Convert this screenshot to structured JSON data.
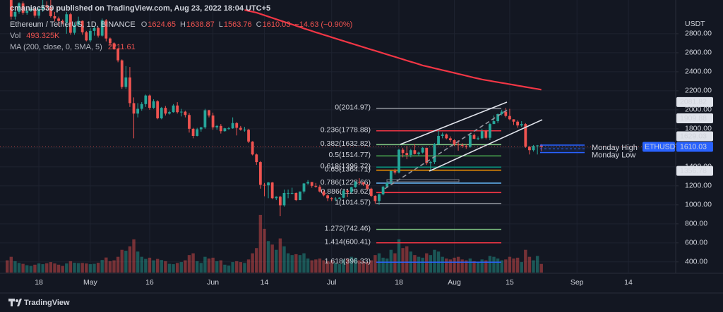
{
  "chart_data": {
    "type": "candlestick",
    "header": "cmaniac539 published on TradingView.com, Aug 23, 2022 18:04 UTC+5",
    "symbol": "Ethereum / TetherUS, 1D, BINANCE",
    "open_label": "O",
    "high_label": "H",
    "low_label": "L",
    "close_label": "C",
    "change": "−14.63 (−0.90%)",
    "volume_name": "Vol",
    "volume_last_label": "493.325K",
    "ma_name": "MA (200, close, 0, SMA, 5)",
    "currency": "USDT",
    "symbol_tag": "ETHUSDT",
    "footer": "TradingView",
    "up_color": "#26a69a",
    "down_color": "#ef5350",
    "ma_color": "#f23645",
    "grid": true,
    "ylim": [
      280,
      3155
    ],
    "yticks": [
      {
        "value": 400,
        "label": "400.00"
      },
      {
        "value": 600,
        "label": "600.00"
      },
      {
        "value": 800,
        "label": "800.00"
      },
      {
        "value": 1000,
        "label": "1000.00"
      },
      {
        "value": 1200,
        "label": "1200.00"
      },
      {
        "value": 1400,
        "label": "1400.00"
      },
      {
        "value": 1600,
        "label": "1600.00"
      },
      {
        "value": 1800,
        "label": "1800.00"
      },
      {
        "value": 2000,
        "label": "2000.00"
      },
      {
        "value": 2200,
        "label": "2200.00"
      },
      {
        "value": 2400,
        "label": "2400.00"
      },
      {
        "value": 2600,
        "label": "2600.00"
      },
      {
        "value": 2800,
        "label": "2800.00"
      }
    ],
    "categories": [
      null,
      null,
      null,
      null,
      null,
      null,
      null,
      null,
      "18",
      null,
      null,
      null,
      null,
      null,
      null,
      null,
      null,
      null,
      null,
      null,
      null,
      "May",
      null,
      null,
      null,
      null,
      null,
      null,
      null,
      null,
      null,
      null,
      null,
      null,
      null,
      null,
      "16",
      null,
      null,
      null,
      null,
      null,
      null,
      null,
      null,
      null,
      null,
      null,
      null,
      null,
      null,
      null,
      "Jun",
      null,
      null,
      null,
      null,
      null,
      null,
      null,
      null,
      null,
      null,
      null,
      null,
      "14",
      null,
      null,
      null,
      null,
      null,
      null,
      null,
      null,
      null,
      null,
      null,
      null,
      null,
      null,
      null,
      null,
      "Jul",
      null,
      null,
      null,
      null,
      null,
      null,
      null,
      null,
      null,
      null,
      null,
      null,
      null,
      null,
      null,
      null,
      "18",
      null,
      null,
      null,
      null,
      null,
      null,
      null,
      null,
      null,
      null,
      null,
      null,
      null,
      "Aug",
      null,
      null,
      null,
      null,
      null,
      null,
      null,
      null,
      null,
      null,
      null,
      null,
      null,
      "15",
      null,
      null,
      null,
      null,
      null,
      null,
      null,
      null,
      null,
      null,
      null,
      null,
      null,
      null,
      null,
      null,
      "Sep",
      null,
      null,
      null,
      null,
      null,
      null,
      null,
      null,
      null,
      null,
      null,
      null,
      "14",
      null,
      null
    ],
    "open": [
      3300,
      3260,
      2980,
      3030,
      3120,
      3020,
      3040,
      3060,
      2990,
      3060,
      3100,
      3080,
      2985,
      2960,
      2935,
      2920,
      3005,
      2810,
      2890,
      2935,
      2815,
      2730,
      2830,
      2860,
      2780,
      2940,
      2750,
      2700,
      2640,
      2520,
      2240,
      2340,
      2070,
      1960,
      2010,
      2060,
      2150,
      2020,
      2090,
      1910,
      2020,
      1960,
      1975,
      2045,
      1975,
      1980,
      1945,
      1800,
      1725,
      1795,
      1815,
      1995,
      1940,
      1815,
      1830,
      1775,
      1805,
      1805,
      1860,
      1810,
      1790,
      1790,
      1665,
      1530,
      1450,
      1210,
      1205,
      1235,
      1070,
      1085,
      995,
      1125,
      1125,
      1125,
      1050,
      1140,
      1225,
      1240,
      1200,
      1190,
      1140,
      1100,
      1070,
      1060,
      1065,
      1075,
      1150,
      1135,
      1185,
      1240,
      1235,
      1215,
      1170,
      1095,
      1040,
      1110,
      1190,
      1230,
      1355,
      1340,
      1580,
      1545,
      1525,
      1575,
      1535,
      1550,
      1600,
      1440,
      1450,
      1640,
      1725,
      1740,
      1700,
      1680,
      1635,
      1630,
      1620,
      1610,
      1735,
      1695,
      1700,
      1775,
      1705,
      1850,
      1880,
      1955,
      1980,
      1935,
      1900,
      1875,
      1835,
      1850,
      1610,
      1575,
      1620,
      1624.65,
      null,
      null,
      null,
      null,
      null,
      null,
      null,
      null,
      null,
      null,
      null,
      null,
      null,
      null,
      null,
      null,
      null,
      null,
      null,
      null,
      null,
      null,
      null,
      null
    ],
    "high": [
      3320,
      3270,
      3050,
      3130,
      3140,
      3060,
      3080,
      3070,
      3070,
      3170,
      3140,
      3190,
      3030,
      2980,
      2950,
      3030,
      3020,
      2920,
      2980,
      2940,
      2830,
      2860,
      2880,
      2870,
      2960,
      2955,
      2760,
      2710,
      2650,
      2530,
      2460,
      2450,
      2130,
      2070,
      2080,
      2160,
      2160,
      2110,
      2100,
      2030,
      2040,
      1990,
      2060,
      2080,
      2010,
      1990,
      1965,
      1810,
      1810,
      1820,
      2010,
      2000,
      1970,
      1840,
      1850,
      1810,
      1820,
      1920,
      1870,
      1830,
      1820,
      1800,
      1670,
      1540,
      1460,
      1230,
      1240,
      1240,
      1090,
      1095,
      1160,
      1160,
      1180,
      1130,
      1140,
      1230,
      1260,
      1240,
      1230,
      1210,
      1150,
      1110,
      1080,
      1080,
      1080,
      1160,
      1160,
      1190,
      1250,
      1280,
      1240,
      1220,
      1180,
      1100,
      1120,
      1200,
      1240,
      1360,
      1380,
      1590,
      1600,
      1620,
      1590,
      1640,
      1560,
      1610,
      1600,
      1460,
      1650,
      1780,
      1760,
      1750,
      1720,
      1690,
      1680,
      1650,
      1640,
      1740,
      1750,
      1720,
      1800,
      1790,
      1860,
      1940,
      1960,
      2000,
      2020,
      2010,
      1900,
      1890,
      1880,
      1860,
      1620,
      1630,
      1630,
      1638.87,
      null,
      null,
      null,
      null,
      null,
      null,
      null,
      null,
      null,
      null,
      null,
      null,
      null,
      null,
      null,
      null,
      null,
      null,
      null,
      null,
      null,
      null,
      null,
      null
    ],
    "low": [
      3230,
      2950,
      2950,
      3010,
      3000,
      3000,
      3030,
      2970,
      2960,
      3030,
      3050,
      2970,
      2930,
      2880,
      2900,
      2800,
      2790,
      2790,
      2880,
      2790,
      2720,
      2710,
      2780,
      2760,
      2770,
      2720,
      2670,
      2630,
      2500,
      2220,
      2220,
      2030,
      1700,
      1920,
      1990,
      2030,
      2000,
      2010,
      1900,
      1900,
      1940,
      1950,
      1970,
      1960,
      1930,
      1920,
      1760,
      1700,
      1720,
      1770,
      1800,
      1920,
      1790,
      1790,
      1750,
      1770,
      1790,
      1800,
      1730,
      1780,
      1770,
      1650,
      1520,
      1420,
      1170,
      1090,
      1070,
      1060,
      1050,
      880,
      980,
      1070,
      1110,
      1040,
      1050,
      1120,
      1210,
      1180,
      1180,
      1130,
      1090,
      1040,
      1040,
      1040,
      1060,
      1070,
      1080,
      1120,
      1180,
      1210,
      1200,
      1160,
      1080,
      1010,
      1000,
      1100,
      1180,
      1220,
      1320,
      1330,
      1500,
      1480,
      1500,
      1530,
      1510,
      1540,
      1420,
      1360,
      1430,
      1630,
      1700,
      1690,
      1660,
      1620,
      1570,
      1600,
      1590,
      1600,
      1690,
      1680,
      1690,
      1690,
      1680,
      1850,
      1860,
      1940,
      1920,
      1890,
      1840,
      1810,
      1820,
      1600,
      1530,
      1560,
      1530,
      1563.76,
      null,
      null,
      null,
      null,
      null,
      null,
      null,
      null,
      null,
      null,
      null,
      null,
      null,
      null,
      null,
      null,
      null,
      null,
      null,
      null,
      null,
      null,
      null,
      null
    ],
    "close": [
      3260,
      2980,
      3030,
      3120,
      3020,
      3040,
      3060,
      2990,
      3060,
      3100,
      3080,
      2985,
      2960,
      2935,
      2920,
      3005,
      2810,
      2890,
      2935,
      2815,
      2730,
      2830,
      2860,
      2780,
      2940,
      2750,
      2700,
      2640,
      2520,
      2240,
      2340,
      2070,
      1960,
      2010,
      2060,
      2150,
      2020,
      2090,
      1910,
      2020,
      1960,
      1975,
      2045,
      1975,
      1980,
      1945,
      1800,
      1725,
      1795,
      1815,
      1995,
      1940,
      1815,
      1830,
      1775,
      1805,
      1805,
      1860,
      1810,
      1790,
      1790,
      1665,
      1530,
      1450,
      1210,
      1205,
      1235,
      1070,
      1085,
      995,
      1125,
      1125,
      1125,
      1050,
      1140,
      1225,
      1240,
      1200,
      1190,
      1140,
      1100,
      1070,
      1060,
      1065,
      1075,
      1150,
      1135,
      1185,
      1240,
      1235,
      1215,
      1170,
      1095,
      1040,
      1110,
      1190,
      1230,
      1355,
      1340,
      1580,
      1545,
      1525,
      1575,
      1535,
      1550,
      1600,
      1440,
      1450,
      1640,
      1725,
      1740,
      1700,
      1680,
      1635,
      1630,
      1620,
      1610,
      1735,
      1695,
      1700,
      1775,
      1705,
      1850,
      1880,
      1955,
      1980,
      1935,
      1900,
      1875,
      1835,
      1850,
      1610,
      1575,
      1620,
      1624.65,
      1610.03,
      null,
      null,
      null,
      null,
      null,
      null,
      null,
      null,
      null,
      null,
      null,
      null,
      null,
      null,
      null,
      null,
      null,
      null,
      null,
      null,
      null,
      null,
      null,
      null
    ],
    "volume": [
      700,
      900,
      650,
      550,
      500,
      420,
      380,
      450,
      520,
      480,
      530,
      600,
      520,
      450,
      380,
      520,
      650,
      560,
      540,
      550,
      520,
      480,
      500,
      560,
      720,
      860,
      650,
      700,
      900,
      1300,
      1250,
      1500,
      1900,
      1200,
      900,
      780,
      850,
      700,
      780,
      720,
      650,
      500,
      480,
      550,
      600,
      700,
      1000,
      1100,
      650,
      550,
      900,
      800,
      850,
      650,
      700,
      450,
      400,
      600,
      650,
      600,
      550,
      750,
      1100,
      1400,
      3300,
      2500,
      1800,
      1600,
      1300,
      1950,
      1500,
      1100,
      1000,
      1050,
      1000,
      1100,
      800,
      700,
      750,
      800,
      700,
      650,
      700,
      550,
      480,
      750,
      800,
      900,
      850,
      700,
      650,
      600,
      700,
      1000,
      1100,
      850,
      800,
      1300,
      1100,
      1900,
      1400,
      1500,
      1200,
      1000,
      900,
      850,
      1100,
      1000,
      1300,
      1200,
      900,
      800,
      750,
      850,
      900,
      750,
      700,
      800,
      650,
      600,
      750,
      700,
      950,
      900,
      800,
      700,
      750,
      900,
      800,
      850,
      600,
      1300,
      900,
      700,
      950,
      493.325,
      null,
      null,
      null,
      null,
      null,
      null,
      null,
      null,
      null,
      null,
      null,
      null,
      null,
      null,
      null,
      null,
      null,
      null,
      null,
      null,
      null,
      null,
      null,
      null
    ],
    "ma": {
      "values": [
        null,
        null,
        null,
        null,
        null,
        null,
        null,
        null,
        null,
        null,
        null,
        null,
        null,
        null,
        null,
        null,
        null,
        null,
        null,
        null,
        null,
        null,
        null,
        null,
        null,
        null,
        null,
        null,
        null,
        null,
        null,
        null,
        null,
        null,
        null,
        null,
        null,
        null,
        null,
        null,
        null,
        null,
        null,
        null,
        null,
        null,
        null,
        null,
        null,
        null,
        null,
        null,
        null,
        null,
        null,
        null,
        null,
        null,
        null,
        null,
        3050,
        3040,
        3031,
        3022,
        3008,
        2994,
        2980,
        2967,
        2953,
        2939,
        2925,
        2911,
        2898,
        2884,
        2870,
        2856,
        2842,
        2829,
        2815,
        2802,
        2789,
        2776,
        2763,
        2750,
        2737,
        2724,
        2711,
        2698,
        2685,
        2672,
        2659,
        2646,
        2633,
        2621,
        2608,
        2595,
        2582,
        2569,
        2557,
        2544,
        2531,
        2518,
        2505,
        2493,
        2480,
        2467,
        2457,
        2447,
        2437,
        2427,
        2417,
        2408,
        2398,
        2388,
        2378,
        2368,
        2358,
        2348,
        2338,
        2329,
        2319,
        2312,
        2305,
        2297,
        2290,
        2283,
        2276,
        2269,
        2262,
        2254,
        2247,
        2240,
        2233,
        2226,
        2219,
        2211.61,
        null,
        null,
        null,
        null,
        null,
        null,
        null,
        null,
        null,
        null,
        null,
        null,
        null,
        null,
        null,
        null,
        null,
        null,
        null,
        null,
        null,
        null,
        null,
        null
      ]
    },
    "fib": [
      {
        "value": 2014.97,
        "label": "0(2014.97)",
        "color": "#9598a1"
      },
      {
        "value": 1778.88,
        "label": "0.236(1778.88)",
        "color": "#f23645"
      },
      {
        "value": 1632.82,
        "label": "0.382(1632.82)",
        "color": "#81c784"
      },
      {
        "value": 1514.77,
        "label": "0.5(1514.77)",
        "color": "#4caf50"
      },
      {
        "value": 1396.72,
        "label": "0.618(1396.72)",
        "color": "#089981"
      },
      {
        "value": 1364.71,
        "label": "0.65(1364.71)",
        "color": "#ff9800"
      },
      {
        "value": 1228.66,
        "label": "0.786(1228.66)",
        "color": "#64b5f6"
      },
      {
        "value": 1129.62,
        "label": "0.886(1129.62)",
        "color": "#f23645"
      },
      {
        "value": 1014.57,
        "label": "1(1014.57)",
        "color": "#9598a1"
      },
      {
        "value": 742.46,
        "label": "1.272(742.46)",
        "color": "#81c784"
      },
      {
        "value": 600.41,
        "label": "1.414(600.41)",
        "color": "#f23645"
      },
      {
        "value": 396.33,
        "label": "1.618(396.33)",
        "color": "#2962ff"
      }
    ],
    "price_tags": [
      2081.82,
      1909.88,
      1629.03,
      1356.78
    ],
    "monday": [
      {
        "label": "Monday High",
        "value": 1629.03
      },
      {
        "label": "Monday Low",
        "value": 1550
      }
    ]
  }
}
